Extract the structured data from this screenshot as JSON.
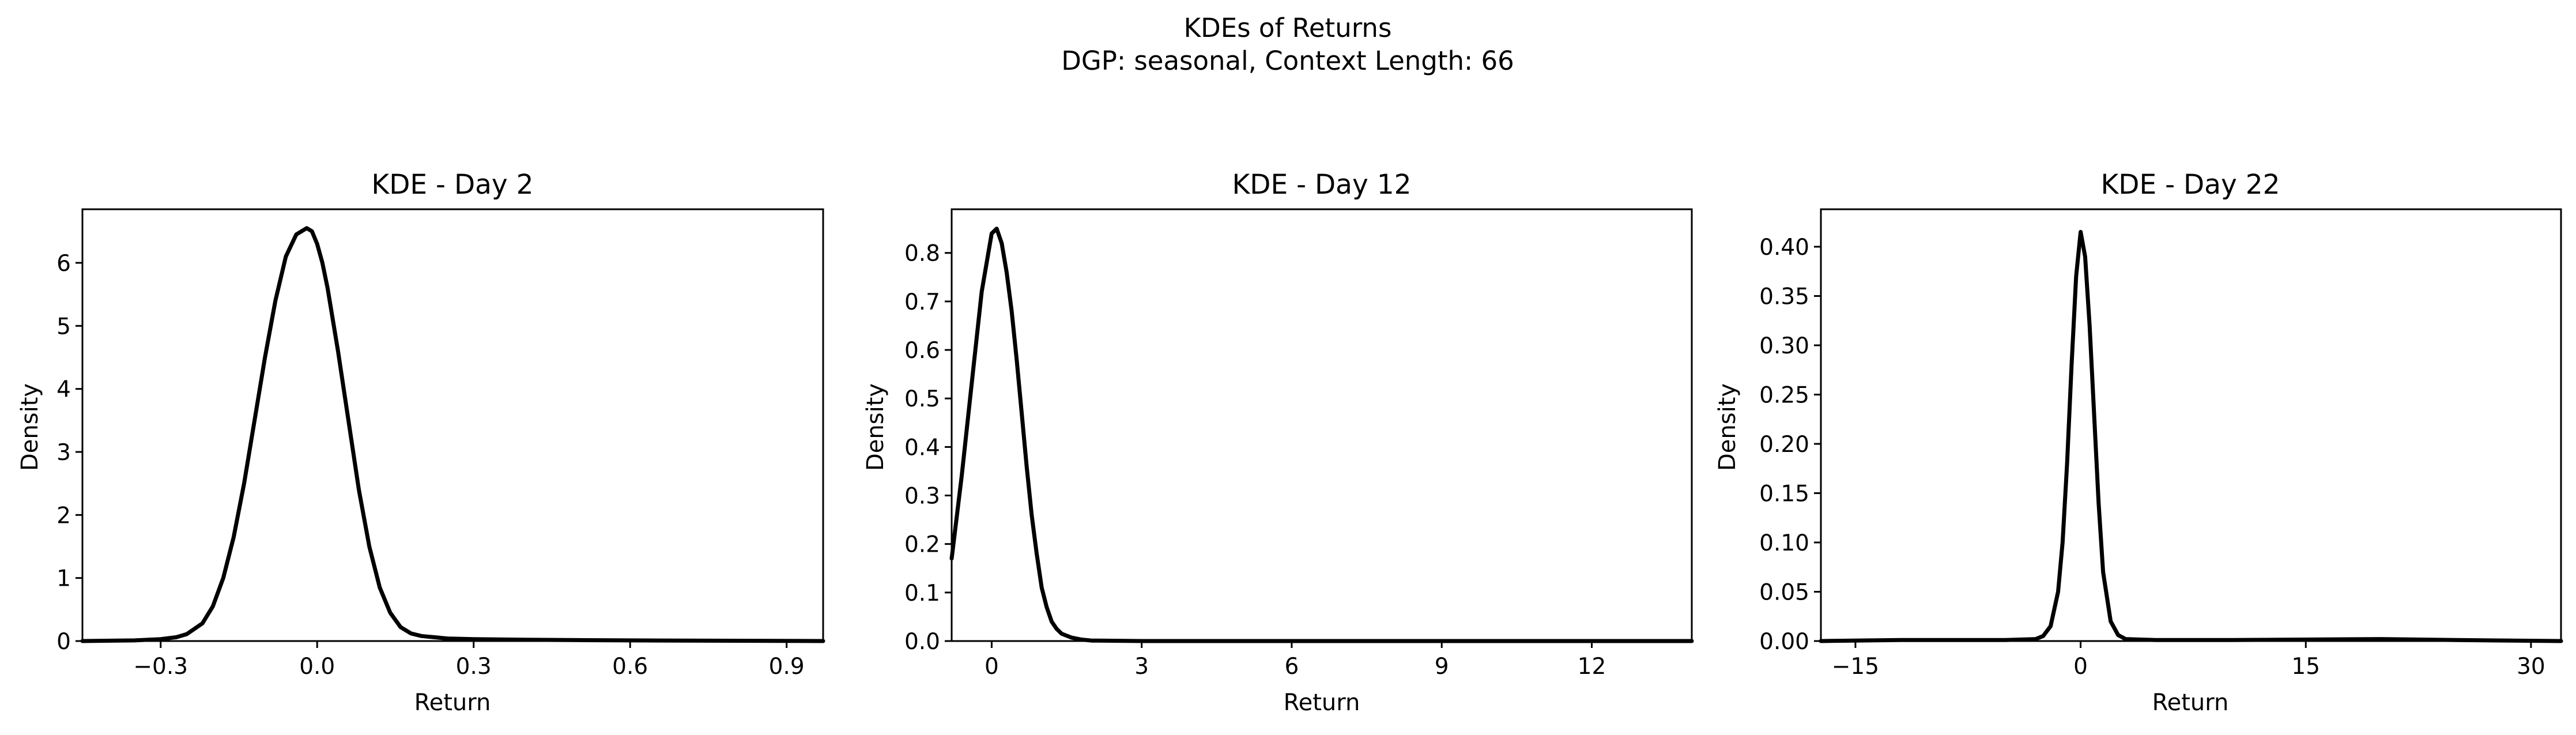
{
  "figure": {
    "title_line1": "KDEs of Returns",
    "title_line2": "DGP: seasonal, Context Length: 66"
  },
  "chart_data": [
    {
      "type": "line",
      "title": "KDE - Day 2",
      "xlabel": "Return",
      "ylabel": "Density",
      "xlim": [
        -0.45,
        0.97
      ],
      "ylim": [
        0,
        6.85
      ],
      "xticks": [
        -0.3,
        0.0,
        0.3,
        0.6,
        0.9
      ],
      "xtick_labels": [
        "−0.3",
        "0.0",
        "0.3",
        "0.6",
        "0.9"
      ],
      "yticks": [
        0,
        1,
        2,
        3,
        4,
        5,
        6
      ],
      "ytick_labels": [
        "0",
        "1",
        "2",
        "3",
        "4",
        "5",
        "6"
      ],
      "grid": false,
      "color": "#000000",
      "x": [
        -0.45,
        -0.35,
        -0.3,
        -0.27,
        -0.25,
        -0.22,
        -0.2,
        -0.18,
        -0.16,
        -0.14,
        -0.12,
        -0.1,
        -0.08,
        -0.06,
        -0.04,
        -0.02,
        -0.01,
        0.0,
        0.01,
        0.02,
        0.04,
        0.06,
        0.08,
        0.1,
        0.12,
        0.14,
        0.16,
        0.18,
        0.2,
        0.25,
        0.3,
        0.4,
        0.5,
        0.6,
        0.97
      ],
      "y": [
        0.0,
        0.01,
        0.03,
        0.06,
        0.11,
        0.28,
        0.55,
        1.0,
        1.65,
        2.5,
        3.5,
        4.5,
        5.4,
        6.1,
        6.45,
        6.55,
        6.5,
        6.3,
        6.0,
        5.6,
        4.6,
        3.5,
        2.4,
        1.5,
        0.85,
        0.45,
        0.22,
        0.12,
        0.08,
        0.04,
        0.03,
        0.02,
        0.015,
        0.01,
        0.0
      ]
    },
    {
      "type": "line",
      "title": "KDE - Day 12",
      "xlabel": "Return",
      "ylabel": "Density",
      "xlim": [
        -0.8,
        14.0
      ],
      "ylim": [
        0,
        0.89
      ],
      "xticks": [
        0,
        3,
        6,
        9,
        12
      ],
      "xtick_labels": [
        "0",
        "3",
        "6",
        "9",
        "12"
      ],
      "yticks": [
        0.0,
        0.1,
        0.2,
        0.3,
        0.4,
        0.5,
        0.6,
        0.7,
        0.8
      ],
      "ytick_labels": [
        "0.0",
        "0.1",
        "0.2",
        "0.3",
        "0.4",
        "0.5",
        "0.6",
        "0.7",
        "0.8"
      ],
      "grid": false,
      "color": "#000000",
      "x": [
        -0.8,
        -0.6,
        -0.4,
        -0.2,
        0.0,
        0.1,
        0.2,
        0.3,
        0.4,
        0.5,
        0.6,
        0.7,
        0.8,
        0.9,
        1.0,
        1.1,
        1.2,
        1.3,
        1.4,
        1.6,
        1.8,
        2.0,
        3.0,
        6.0,
        9.0,
        12.0,
        14.0
      ],
      "y": [
        0.17,
        0.34,
        0.53,
        0.72,
        0.84,
        0.85,
        0.82,
        0.76,
        0.68,
        0.58,
        0.47,
        0.36,
        0.26,
        0.18,
        0.11,
        0.07,
        0.04,
        0.025,
        0.015,
        0.007,
        0.003,
        0.001,
        0.0,
        0.0,
        0.0,
        0.0,
        0.0
      ]
    },
    {
      "type": "line",
      "title": "KDE - Day 22",
      "xlabel": "Return",
      "ylabel": "Density",
      "xlim": [
        -17.3,
        32.0
      ],
      "ylim": [
        0,
        0.438
      ],
      "xticks": [
        -15,
        0,
        15,
        30
      ],
      "xtick_labels": [
        "−15",
        "0",
        "15",
        "30"
      ],
      "yticks": [
        0.0,
        0.05,
        0.1,
        0.15,
        0.2,
        0.25,
        0.3,
        0.35,
        0.4
      ],
      "ytick_labels": [
        "0.00",
        "0.05",
        "0.10",
        "0.15",
        "0.20",
        "0.25",
        "0.30",
        "0.35",
        "0.40"
      ],
      "grid": false,
      "color": "#000000",
      "x": [
        -17.3,
        -12.0,
        -8.0,
        -5.0,
        -3.0,
        -2.5,
        -2.0,
        -1.5,
        -1.2,
        -0.9,
        -0.6,
        -0.3,
        0.0,
        0.3,
        0.6,
        0.9,
        1.2,
        1.5,
        2.0,
        2.5,
        3.0,
        5.0,
        10.0,
        20.0,
        25.0,
        32.0
      ],
      "y": [
        0.0,
        0.001,
        0.001,
        0.001,
        0.002,
        0.005,
        0.015,
        0.05,
        0.1,
        0.18,
        0.28,
        0.37,
        0.415,
        0.39,
        0.32,
        0.23,
        0.14,
        0.07,
        0.02,
        0.006,
        0.002,
        0.001,
        0.001,
        0.002,
        0.001,
        0.0
      ]
    }
  ]
}
